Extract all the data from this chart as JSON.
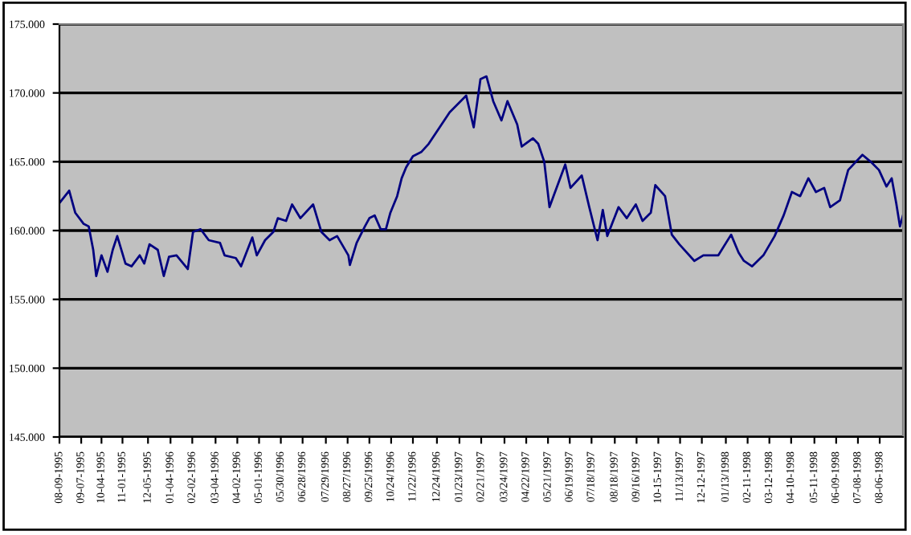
{
  "chart_data": {
    "type": "line",
    "x": [
      "1995-08-09",
      "1995-08-22",
      "1995-08-30",
      "1995-09-10",
      "1995-09-17",
      "1995-09-23",
      "1995-09-27",
      "1995-10-04",
      "1995-10-12",
      "1995-10-19",
      "1995-10-25",
      "1995-11-05",
      "1995-11-13",
      "1995-11-24",
      "1995-11-30",
      "1995-12-07",
      "1995-12-18",
      "1995-12-26",
      "1996-01-02",
      "1996-01-12",
      "1996-01-27",
      "1996-02-03",
      "1996-02-13",
      "1996-02-24",
      "1996-03-10",
      "1996-03-16",
      "1996-03-31",
      "1996-04-07",
      "1996-04-22",
      "1996-04-28",
      "1996-05-09",
      "1996-05-20",
      "1996-05-26",
      "1996-06-06",
      "1996-06-14",
      "1996-06-25",
      "1996-07-12",
      "1996-07-23",
      "1996-08-03",
      "1996-08-13",
      "1996-08-28",
      "1996-08-30",
      "1996-09-08",
      "1996-09-19",
      "1996-09-25",
      "1996-10-02",
      "1996-10-10",
      "1996-10-17",
      "1996-10-23",
      "1996-11-01",
      "1996-11-07",
      "1996-11-13",
      "1996-11-22",
      "1996-12-03",
      "1996-12-13",
      "1997-01-10",
      "1997-02-01",
      "1997-02-11",
      "1997-02-20",
      "1997-02-28",
      "1997-03-09",
      "1997-03-20",
      "1997-03-28",
      "1997-04-10",
      "1997-04-16",
      "1997-05-01",
      "1997-05-08",
      "1997-05-16",
      "1997-05-23",
      "1997-05-29",
      "1997-06-13",
      "1997-06-20",
      "1997-07-05",
      "1997-07-15",
      "1997-07-26",
      "1997-08-02",
      "1997-08-08",
      "1997-08-23",
      "1997-09-03",
      "1997-09-15",
      "1997-09-24",
      "1997-10-05",
      "1997-10-11",
      "1997-10-24",
      "1997-11-02",
      "1997-11-12",
      "1997-12-02",
      "1997-12-14",
      "1998-01-03",
      "1998-01-20",
      "1998-01-30",
      "1998-02-06",
      "1998-02-17",
      "1998-03-04",
      "1998-03-19",
      "1998-03-31",
      "1998-04-11",
      "1998-04-22",
      "1998-05-03",
      "1998-05-13",
      "1998-05-24",
      "1998-06-01",
      "1998-06-14",
      "1998-06-25",
      "1998-07-14",
      "1998-07-25",
      "1998-08-05",
      "1998-08-15",
      "1998-08-22",
      "1998-08-28",
      "1998-09-02",
      "1998-09-06"
    ],
    "series": [
      {
        "color": "#000080",
        "values": [
          162.0,
          162.9,
          161.3,
          160.5,
          160.3,
          158.6,
          156.7,
          158.2,
          157.0,
          158.6,
          159.6,
          157.6,
          157.4,
          158.2,
          157.6,
          159.0,
          158.6,
          156.7,
          158.1,
          158.2,
          157.2,
          159.9,
          160.1,
          159.3,
          159.1,
          158.2,
          158.0,
          157.4,
          159.5,
          158.2,
          159.3,
          159.9,
          160.9,
          160.7,
          161.9,
          160.9,
          161.9,
          159.9,
          159.3,
          159.6,
          158.2,
          157.5,
          159.1,
          160.3,
          160.9,
          161.1,
          160.1,
          160.1,
          161.3,
          162.5,
          163.8,
          164.6,
          165.4,
          165.7,
          166.3,
          168.6,
          169.8,
          167.5,
          171.0,
          171.2,
          169.4,
          168.0,
          169.4,
          167.7,
          166.1,
          166.7,
          166.3,
          165.0,
          161.7,
          162.6,
          164.8,
          163.1,
          164.0,
          161.7,
          159.3,
          161.5,
          159.6,
          161.7,
          160.9,
          161.9,
          160.7,
          161.3,
          163.3,
          162.5,
          159.7,
          159.0,
          157.8,
          158.2,
          158.2,
          159.7,
          158.4,
          157.8,
          157.4,
          158.2,
          159.6,
          161.1,
          162.8,
          162.5,
          163.8,
          162.8,
          163.1,
          161.7,
          162.2,
          164.4,
          165.5,
          165.0,
          164.4,
          163.2,
          163.8,
          162.0,
          160.3,
          161.1
        ]
      }
    ],
    "xlim": [
      "1995-08-09",
      "1998-09-06"
    ],
    "xticks": [
      {
        "value": "1995-08-09",
        "label": "08-09-1995"
      },
      {
        "value": "1995-09-07",
        "label": "09-07-1995"
      },
      {
        "value": "1995-10-04",
        "label": "10-04-1995"
      },
      {
        "value": "1995-11-01",
        "label": "11-01-1995"
      },
      {
        "value": "1995-12-05",
        "label": "12-05-1995"
      },
      {
        "value": "1996-01-04",
        "label": "01-04-1996"
      },
      {
        "value": "1996-02-02",
        "label": "02-02-1996"
      },
      {
        "value": "1996-03-04",
        "label": "03-04-1996"
      },
      {
        "value": "1996-04-02",
        "label": "04-02-1996"
      },
      {
        "value": "1996-05-01",
        "label": "05-01-1996"
      },
      {
        "value": "1996-05-30",
        "label": "05/30/1996"
      },
      {
        "value": "1996-06-28",
        "label": "06/28/1996"
      },
      {
        "value": "1996-07-29",
        "label": "07/29/1996"
      },
      {
        "value": "1996-08-27",
        "label": "08/27/1996"
      },
      {
        "value": "1996-09-25",
        "label": "09/25/1996"
      },
      {
        "value": "1996-10-24",
        "label": "10/24/1996"
      },
      {
        "value": "1996-11-22",
        "label": "11/22/1996"
      },
      {
        "value": "1996-12-24",
        "label": "12/24/1996"
      },
      {
        "value": "1997-01-23",
        "label": "01/23/1997"
      },
      {
        "value": "1997-02-21",
        "label": "02/21/1997"
      },
      {
        "value": "1997-03-24",
        "label": "03/24/1997"
      },
      {
        "value": "1997-04-22",
        "label": "04/22/1997"
      },
      {
        "value": "1997-05-21",
        "label": "05/21/1997"
      },
      {
        "value": "1997-06-19",
        "label": "06/19/1997"
      },
      {
        "value": "1997-07-18",
        "label": "07/18/1997"
      },
      {
        "value": "1997-08-18",
        "label": "08/18/1997"
      },
      {
        "value": "1997-09-16",
        "label": "09/16/1997"
      },
      {
        "value": "1997-10-15",
        "label": "10-15-1997"
      },
      {
        "value": "1997-11-13",
        "label": "11/13/1997"
      },
      {
        "value": "1997-12-12",
        "label": "12-12-1997"
      },
      {
        "value": "1998-01-13",
        "label": "01/13/1998"
      },
      {
        "value": "1998-02-11",
        "label": "02-11-1998"
      },
      {
        "value": "1998-03-12",
        "label": "03-12-1998"
      },
      {
        "value": "1998-04-10",
        "label": "04-10-1998"
      },
      {
        "value": "1998-05-11",
        "label": "05-11-1998"
      },
      {
        "value": "1998-06-09",
        "label": "06-09-1998"
      },
      {
        "value": "1998-07-08",
        "label": "07-08-1998"
      },
      {
        "value": "1998-08-06",
        "label": "08-06-1998"
      }
    ],
    "ylim": [
      145,
      175
    ],
    "yticks": [
      {
        "value": 145,
        "label": "145.000"
      },
      {
        "value": 150,
        "label": "150.000"
      },
      {
        "value": 155,
        "label": "155.000"
      },
      {
        "value": 160,
        "label": "160.000"
      },
      {
        "value": 165,
        "label": "165.000"
      },
      {
        "value": 170,
        "label": "170.000"
      },
      {
        "value": 175,
        "label": "175.000"
      }
    ],
    "grid": "y",
    "legend": false
  }
}
